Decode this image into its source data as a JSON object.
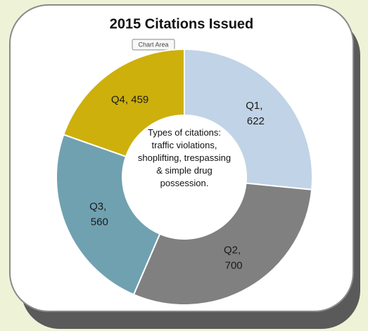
{
  "chart_data": {
    "type": "doughnut",
    "title": "2015 Citations Issued",
    "tooltip": "Chart Area",
    "annotation": "Types of citations: traffic violations, shoplifting, trespassing & simple drug possession.",
    "categories": [
      "Q1",
      "Q2",
      "Q3",
      "Q4"
    ],
    "values": [
      622,
      700,
      560,
      459
    ],
    "value_labels": [
      "Q1, 622",
      "Q2, 700",
      "Q3, 560",
      "Q4, 459"
    ],
    "colors": [
      "#c1d3e6",
      "#808080",
      "#70a1b1",
      "#cdb00c"
    ]
  }
}
